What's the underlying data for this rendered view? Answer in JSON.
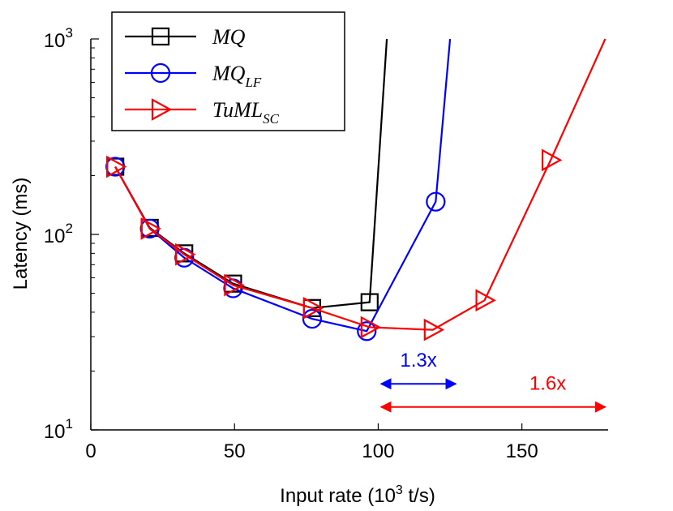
{
  "chart_data": {
    "type": "line",
    "title": "",
    "xlabel": "Input rate (10",
    "xlabel_sup": "3",
    "xlabel_tail": " t/s)",
    "ylabel": "Latency (ms)",
    "xlim": [
      0,
      180
    ],
    "ylim": [
      10,
      1000
    ],
    "yscale": "log",
    "grid": false,
    "legend_position": "top-left",
    "x_ticks": [
      {
        "value": 0,
        "label": "0"
      },
      {
        "value": 50,
        "label": "50"
      },
      {
        "value": 100,
        "label": "100"
      },
      {
        "value": 150,
        "label": "150"
      }
    ],
    "y_ticks": [
      {
        "value": 10,
        "base": "10",
        "exp": "1"
      },
      {
        "value": 100,
        "base": "10",
        "exp": "2"
      },
      {
        "value": 1000,
        "base": "10",
        "exp": "3"
      }
    ],
    "series": [
      {
        "name": "MQ",
        "name_main": "MQ",
        "name_sub": "",
        "color": "#000000",
        "marker": "square",
        "x": [
          8.5,
          20.5,
          32.5,
          49.5,
          77,
          97,
          103
        ],
        "y": [
          222,
          108,
          80,
          56,
          42,
          45,
          1000
        ],
        "markers": [
          true,
          true,
          true,
          true,
          true,
          true,
          false
        ]
      },
      {
        "name": "MQ_LF",
        "name_main": "MQ",
        "name_sub": "LF",
        "color": "#0000ff",
        "marker": "circle",
        "x": [
          8.5,
          20.5,
          32.5,
          49.5,
          77,
          96,
          120,
          125
        ],
        "y": [
          222,
          107,
          76,
          53,
          37,
          32,
          147,
          1000
        ],
        "markers": [
          true,
          true,
          true,
          true,
          true,
          true,
          true,
          false
        ]
      },
      {
        "name": "TuML_SC",
        "name_main": "TuML",
        "name_sub": "SC",
        "color": "#ff0000",
        "marker": "triangle-right",
        "x": [
          8.5,
          20.5,
          32.5,
          49.5,
          77,
          97,
          119,
          137,
          160,
          179
        ],
        "y": [
          222,
          107,
          79,
          55,
          42,
          33.5,
          32.5,
          46,
          240,
          1000
        ],
        "markers": [
          true,
          true,
          true,
          true,
          true,
          true,
          true,
          true,
          true,
          false
        ]
      }
    ],
    "annotations": [
      {
        "label": "1.3x",
        "color": "#0000ff",
        "x_from": 101,
        "x_to": 127,
        "y": 17.2,
        "label_x": 114,
        "label_y": 23
      },
      {
        "label": "1.6x",
        "color": "#ff0000",
        "x_from": 101,
        "x_to": 179,
        "y": 13.1,
        "label_x": 159,
        "label_y": 17.5
      }
    ]
  }
}
